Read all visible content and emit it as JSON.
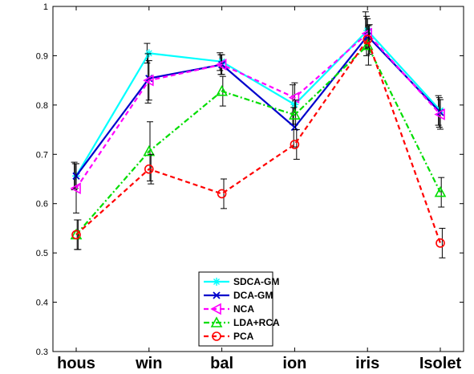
{
  "chart_data": {
    "type": "line",
    "categories": [
      "hous",
      "win",
      "bal",
      "ion",
      "iris",
      "Isolet"
    ],
    "ylim": [
      0.3,
      1
    ],
    "yticks": [
      0.3,
      0.4,
      0.5,
      0.6,
      0.7,
      0.8,
      0.9,
      1
    ],
    "ytick_labels": [
      "0.3",
      "0.4",
      "0.5",
      "0.6",
      "0.7",
      "0.8",
      "0.9",
      "1"
    ],
    "grid": false,
    "legend_position": "bottom-center",
    "series": [
      {
        "name": "SDCA-GM",
        "color": "#00ffff",
        "dash": "solid",
        "marker": "asterisk",
        "values": [
          0.656,
          0.905,
          0.888,
          0.801,
          0.951,
          0.789
        ],
        "errors": [
          0.028,
          0.02,
          0.018,
          0.04,
          0.038,
          0.03
        ]
      },
      {
        "name": "DCA-GM",
        "color": "#0000cc",
        "dash": "solid",
        "marker": "x",
        "values": [
          0.656,
          0.854,
          0.882,
          0.755,
          0.94,
          0.785
        ],
        "errors": [
          0.025,
          0.05,
          0.02,
          0.04,
          0.04,
          0.03
        ]
      },
      {
        "name": "NCA",
        "color": "#ff00ff",
        "dash": "dashed",
        "marker": "triangle-left",
        "values": [
          0.631,
          0.85,
          0.882,
          0.815,
          0.945,
          0.781
        ],
        "errors": [
          0.05,
          0.04,
          0.02,
          0.03,
          0.03,
          0.03
        ]
      },
      {
        "name": "LDA+RCA",
        "color": "#00dd00",
        "dash": "dashdot",
        "marker": "triangle-up",
        "values": [
          0.537,
          0.706,
          0.828,
          0.78,
          0.921,
          0.623
        ],
        "errors": [
          0.03,
          0.06,
          0.03,
          0.03,
          0.04,
          0.03
        ]
      },
      {
        "name": "PCA",
        "color": "#ff0000",
        "dash": "dashed",
        "marker": "circle",
        "values": [
          0.537,
          0.67,
          0.62,
          0.72,
          0.933,
          0.52
        ],
        "errors": [
          0.03,
          0.03,
          0.03,
          0.03,
          0.03,
          0.03
        ]
      }
    ]
  }
}
